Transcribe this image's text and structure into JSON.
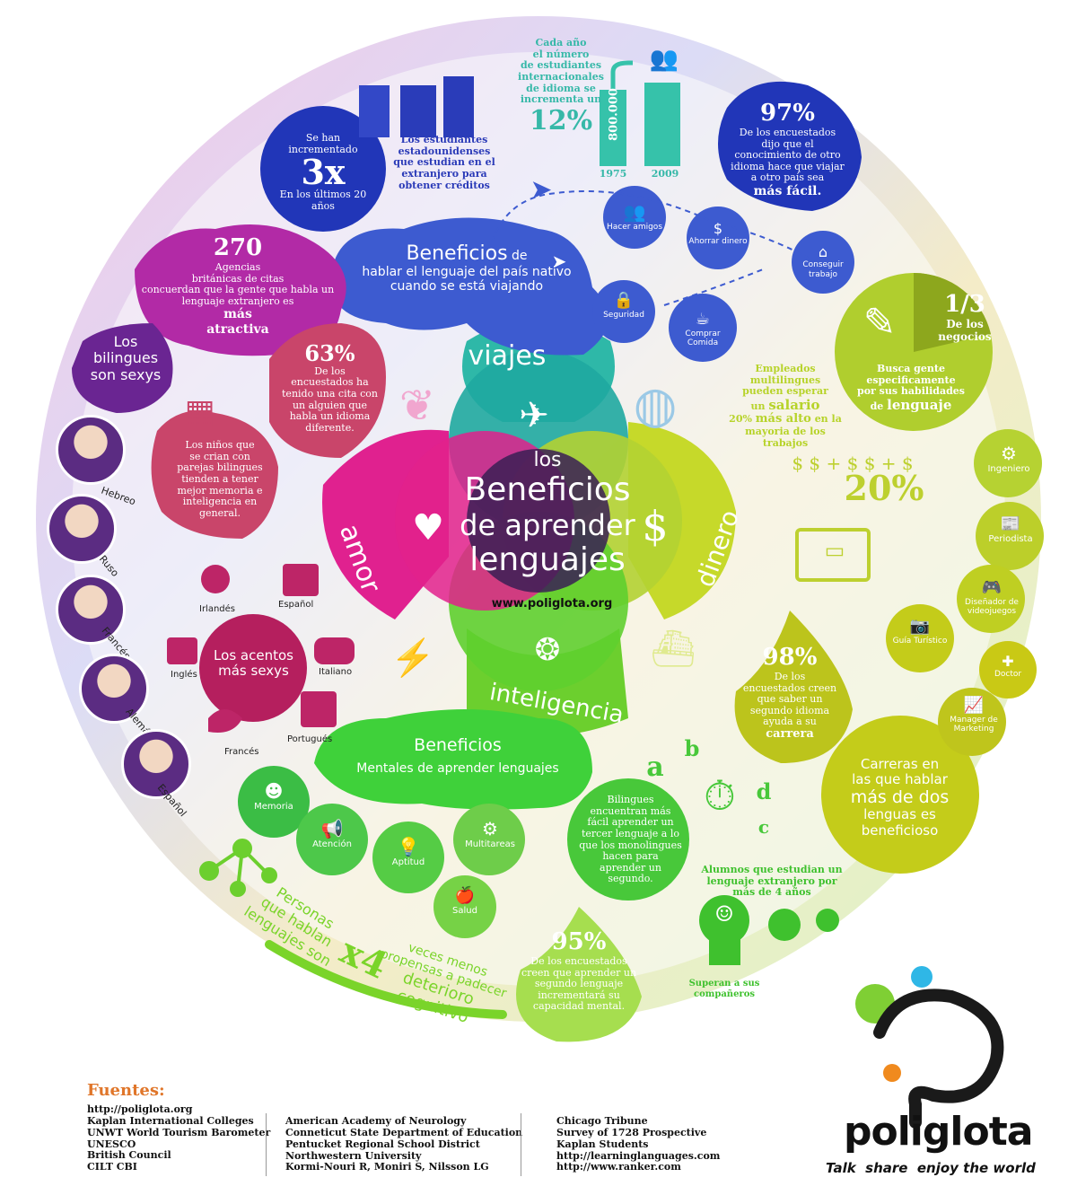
{
  "center": {
    "los": "los",
    "beneficios": "Beneficios",
    "de_aprender": "de aprender",
    "lenguajes": "lenguajes",
    "url": "www.poliglota.org"
  },
  "petals": {
    "viajes": "viajes",
    "dinero": "dinero",
    "inteligencia": "inteligencia",
    "amor": "amor"
  },
  "travel": {
    "title_big": "Beneficios",
    "title_small": " de",
    "line2": "hablar el lenguaje del país nativo",
    "line3": "cuando se está viajando",
    "icons": [
      "Hacer amigos",
      "Ahorrar dinero",
      "Conseguir trabajo",
      "Seguridad",
      "Comprar Comida"
    ]
  },
  "stat_3x": {
    "top": "Se han incrementado",
    "big": "3x",
    "bottom": "En los últimos 20 años"
  },
  "students_abroad": [
    "Los estudiantes",
    "estadounidenses",
    "que estudian en el",
    "extranjero para",
    "obtener créditos"
  ],
  "intl_students": {
    "text": [
      "Cada año",
      "el número",
      "de estudiantes",
      "internacionales",
      "de idioma se",
      "incrementa un"
    ],
    "pct": "12%",
    "bar_value": "800.000",
    "year1": "1975",
    "year2": "2009"
  },
  "stat_97": {
    "pct": "97%",
    "text": [
      "De los encuestados",
      "dijo que el",
      "conocimiento de otro",
      "idioma hace que viajar",
      "a otro país sea"
    ],
    "emph": "más fácil."
  },
  "stat_270": {
    "num": "270",
    "text": [
      "Agencias",
      "británicas de citas",
      "concuerdan que la gente que habla un",
      "lenguaje extranjero es"
    ],
    "emph": [
      "más",
      "atractiva"
    ]
  },
  "bilingues_sexys": [
    "Los",
    "bilingues",
    "son sexys"
  ],
  "stat_63": {
    "pct": "63%",
    "text": [
      "De los",
      "encuestados ha",
      "tenido una cita con",
      "un  alguien que",
      "habla un idioma",
      "diferente."
    ]
  },
  "ninos": [
    "Los niños que",
    "se crian con",
    "parejas bilingues",
    "tienden a tener",
    "mejor memoria e",
    "inteligencia en",
    "general."
  ],
  "faces": [
    "Hebreo",
    "Ruso",
    "Francés",
    "Alemán",
    "Español"
  ],
  "accents": {
    "title": [
      "Los acentos",
      "más sexys"
    ],
    "labels": [
      "Irlandés",
      "Español",
      "Inglés",
      "Italiano",
      "Portugués",
      "Francés"
    ]
  },
  "mental": {
    "title": "Beneficios",
    "subtitle": "Mentales de aprender lenguajes",
    "icons": [
      "Memoria",
      "Atención",
      "Aptitud",
      "Multitareas",
      "Salud"
    ]
  },
  "cognitive": {
    "left": [
      "Personas",
      "que hablan",
      "lenguajes son"
    ],
    "big": "x4",
    "right": [
      "veces menos",
      "propensas a padecer",
      "deterioro cognitivo"
    ]
  },
  "stat_95": {
    "pct": "95%",
    "text": [
      "De los encuestados",
      "creen que aprender un",
      "segundo lenguaje",
      "incrementará su",
      "capacidad mental."
    ]
  },
  "third_lang": [
    "Bilingues",
    "encuentran más",
    "fácil aprender un",
    "tercer lenguaje a lo",
    "que los monolingues",
    "hacen para",
    "aprender un",
    "segundo."
  ],
  "letters": [
    "a",
    "b",
    "c",
    "d"
  ],
  "students_4yrs": {
    "title": [
      "Alumnos que estudian un",
      "lenguaje extranjero por",
      "más de 4 años"
    ],
    "caption": [
      "Superan a sus",
      "compañeros"
    ]
  },
  "one_third": {
    "big": "1/3",
    "text": [
      "De los",
      "negocios"
    ],
    "caption": [
      "Busca gente",
      "especificamente",
      "por sus habilidades",
      "de"
    ],
    "emph": "lenguaje"
  },
  "salary": {
    "text": [
      "Empleados",
      "multilingues",
      "pueden esperar"
    ],
    "emph1": "salario",
    "line_un": "un",
    "line_pct": "20%",
    "emph2": "más alto",
    "rest": [
      "en la",
      "mayoria de los",
      "trabajos"
    ],
    "big": "20%"
  },
  "careers_icons": [
    "Ingeniero",
    "Periodista",
    "Diseñador de videojuegos",
    "Guía Turístico",
    "Doctor",
    "Manager de Marketing"
  ],
  "careers": {
    "text": [
      "Carreras en",
      "las que hablar"
    ],
    "emph": "más de dos",
    "rest": [
      "lenguas  es",
      "beneficioso"
    ]
  },
  "stat_98": {
    "pct": "98%",
    "text": [
      "De los",
      "encuestados creen",
      "que saber un",
      "segundo idioma",
      "ayuda a su"
    ],
    "emph": "carrera"
  },
  "sources": {
    "title": "Fuentes:",
    "col1": [
      "http://poliglota.org",
      "Kaplan International Colleges",
      "UNWT World Tourism Barometer",
      "UNESCO",
      "British Council",
      "CILT CBI"
    ],
    "col2": [
      "American Academy of Neurology",
      "Conneticut State Department of Education",
      "Pentucket Regional School District",
      "Northwestern University",
      "Kormi-Nouri R, Moniri S, Nilsson LG"
    ],
    "col3": [
      "Chicago Tribune",
      "Survey of 1728 Prospective",
      "Kaplan Students",
      "http://learninglanguages.com",
      "http://www.ranker.com"
    ]
  },
  "brand": {
    "name": "poliglota",
    "tagline": "Talk  share  enjoy the world"
  },
  "colors": {
    "purple": "#6b2c91",
    "magenta": "#d81b8c",
    "blue": "#3454c6",
    "navy": "#1f2a9e",
    "teal": "#2eb8a8",
    "lime": "#b7d32a",
    "green": "#6ccf2e",
    "olive": "#c6cc1e",
    "rose": "#c9456a"
  }
}
